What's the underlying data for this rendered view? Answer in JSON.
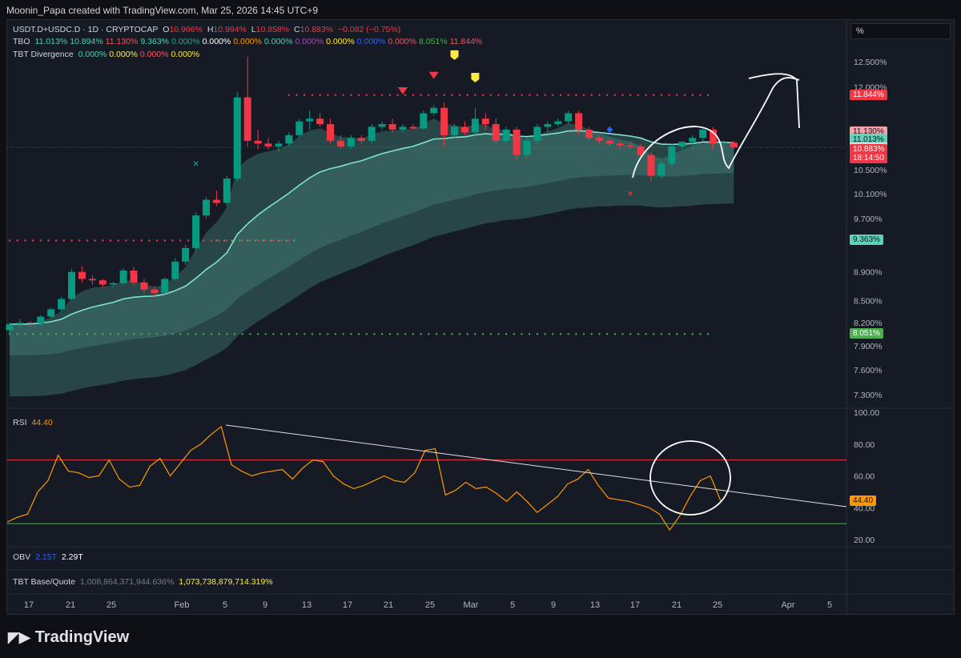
{
  "creator": "Moonin_Papa created with TradingView.com, Mar 25, 2026 14:45 UTC+9",
  "search_value": "%",
  "symbol_line": {
    "symbol": "USDT.D+USDC.D · 1D · CRYPTOCAP",
    "open_label": "O",
    "open": "10.966%",
    "high_label": "H",
    "high": "10.994%",
    "low_label": "L",
    "low": "10.858%",
    "close_label": "C",
    "close": "10.883%",
    "change": "−0.082 (−0.75%)"
  },
  "tbo_line": {
    "label": "TBO",
    "values": [
      {
        "text": "11.013%",
        "color": "#4dd0b0"
      },
      {
        "text": "10.894%",
        "color": "#4dd0b0"
      },
      {
        "text": "11.130%",
        "color": "#f7525f"
      },
      {
        "text": "9.363%",
        "color": "#4dd0b0"
      },
      {
        "text": "0.000%",
        "color": "#26a69a"
      },
      {
        "text": "0.000%",
        "color": "#ffffff"
      },
      {
        "text": "0.000%",
        "color": "#ff9800"
      },
      {
        "text": "0.000%",
        "color": "#4dd0b0"
      },
      {
        "text": "0.000%",
        "color": "#ab47bc"
      },
      {
        "text": "0.000%",
        "color": "#ffeb3b"
      },
      {
        "text": "0.000%",
        "color": "#2962ff"
      },
      {
        "text": "0.000%",
        "color": "#f7525f"
      },
      {
        "text": "8.051%",
        "color": "#4caf50"
      },
      {
        "text": "11.844%",
        "color": "#f7525f"
      }
    ]
  },
  "div_line": {
    "label": "TBT Divergence",
    "values": [
      {
        "text": "0.000%",
        "color": "#4dd0b0"
      },
      {
        "text": "0.000%",
        "color": "#ffeb3b"
      },
      {
        "text": "0.000%",
        "color": "#f7525f"
      },
      {
        "text": "0.000%",
        "color": "#ffeb3b"
      }
    ]
  },
  "rsi_legend": {
    "label": "RSI",
    "value": "44.40"
  },
  "obv_legend": {
    "label": "OBV",
    "v1": "2.15T",
    "v2": "2.29T"
  },
  "base_legend": {
    "label": "TBT Base/Quote",
    "v1": "1,008,864,371,944.636%",
    "v2": "1,073,738,879,714.319%"
  },
  "price_axis": [
    "12.500%",
    "12.000%",
    "10.500%",
    "10.100%",
    "9.700%",
    "8.900%",
    "8.500%",
    "8.200%",
    "7.900%",
    "7.600%",
    "7.300%"
  ],
  "price_tags": [
    {
      "text": "11.844%",
      "bg": "#f23645"
    },
    {
      "text": "11.130%",
      "bg": "#f7a1a8",
      "fg": "#131722"
    },
    {
      "text": "11.013%",
      "bg": "#5fd3b5",
      "fg": "#131722"
    },
    {
      "text": "10.894%",
      "bg": "#b2ebe0",
      "fg": "#131722"
    },
    {
      "text": "10.883%",
      "bg": "#f23645"
    },
    {
      "text": "18:14:50",
      "bg": "#f23645"
    },
    {
      "text": "9.363%",
      "bg": "#5fd3b5",
      "fg": "#131722"
    },
    {
      "text": "8.051%",
      "bg": "#4caf50"
    }
  ],
  "rsi_axis": [
    "100.00",
    "80.00",
    "60.00",
    "40.00",
    "20.00"
  ],
  "rsi_tag": "44.40",
  "time_axis": [
    "17",
    "21",
    "25",
    "Feb",
    "5",
    "9",
    "13",
    "17",
    "21",
    "25",
    "Mar",
    "5",
    "9",
    "13",
    "17",
    "21",
    "25",
    "Apr",
    "5"
  ],
  "brand": "TradingView",
  "colors": {
    "up": "#089981",
    "down": "#f23645",
    "rsi": "#ff9800",
    "tbo_line": "#7fe3cf",
    "accent": "#2962ff"
  },
  "chart_data": [
    {
      "type": "candlestick",
      "title": "USDT.D+USDC.D · 1D · CRYPTOCAP",
      "y_unit": "%",
      "x": [
        "Jan 14",
        "Jan 15",
        "Jan 16",
        "Jan 17",
        "Jan 18",
        "Jan 19",
        "Jan 20",
        "Jan 21",
        "Jan 22",
        "Jan 23",
        "Jan 24",
        "Jan 25",
        "Jan 26",
        "Jan 27",
        "Jan 28",
        "Jan 29",
        "Jan 30",
        "Jan 31",
        "Feb 1",
        "Feb 2",
        "Feb 3",
        "Feb 4",
        "Feb 5",
        "Feb 6",
        "Feb 7",
        "Feb 8",
        "Feb 9",
        "Feb 10",
        "Feb 11",
        "Feb 12",
        "Feb 13",
        "Feb 14",
        "Feb 15",
        "Feb 16",
        "Feb 17",
        "Feb 18",
        "Feb 19",
        "Feb 20",
        "Feb 21",
        "Feb 22",
        "Feb 23",
        "Feb 24",
        "Feb 25",
        "Feb 26",
        "Feb 27",
        "Feb 28",
        "Mar 1",
        "Mar 2",
        "Mar 3",
        "Mar 4",
        "Mar 5",
        "Mar 6",
        "Mar 7",
        "Mar 8",
        "Mar 9",
        "Mar 10",
        "Mar 11",
        "Mar 12",
        "Mar 13",
        "Mar 14",
        "Mar 15",
        "Mar 16",
        "Mar 17",
        "Mar 18",
        "Mar 19",
        "Mar 20",
        "Mar 21",
        "Mar 22",
        "Mar 23",
        "Mar 24",
        "Mar 25"
      ],
      "ohlc": [
        [
          8.1,
          8.2,
          8.05,
          8.18
        ],
        [
          8.18,
          8.25,
          8.12,
          8.2
        ],
        [
          8.2,
          8.22,
          8.15,
          8.19
        ],
        [
          8.19,
          8.3,
          8.15,
          8.28
        ],
        [
          8.28,
          8.4,
          8.25,
          8.38
        ],
        [
          8.38,
          8.55,
          8.35,
          8.52
        ],
        [
          8.52,
          8.95,
          8.5,
          8.9
        ],
        [
          8.9,
          8.98,
          8.75,
          8.8
        ],
        [
          8.8,
          8.85,
          8.72,
          8.78
        ],
        [
          8.78,
          8.8,
          8.68,
          8.72
        ],
        [
          8.72,
          8.76,
          8.68,
          8.74
        ],
        [
          8.74,
          8.95,
          8.72,
          8.92
        ],
        [
          8.92,
          8.97,
          8.7,
          8.75
        ],
        [
          8.75,
          8.8,
          8.6,
          8.65
        ],
        [
          8.65,
          8.7,
          8.55,
          8.6
        ],
        [
          8.6,
          8.82,
          8.58,
          8.8
        ],
        [
          8.8,
          9.1,
          8.78,
          9.05
        ],
        [
          9.05,
          9.3,
          9.0,
          9.25
        ],
        [
          9.25,
          9.8,
          9.2,
          9.75
        ],
        [
          9.75,
          10.05,
          9.7,
          10.0
        ],
        [
          10.0,
          10.15,
          9.9,
          9.95
        ],
        [
          9.95,
          10.4,
          9.9,
          10.35
        ],
        [
          10.35,
          11.9,
          10.3,
          11.8
        ],
        [
          11.8,
          12.6,
          10.9,
          11.0
        ],
        [
          11.0,
          11.2,
          10.85,
          10.95
        ],
        [
          10.95,
          11.05,
          10.85,
          10.9
        ],
        [
          10.9,
          11.0,
          10.8,
          10.95
        ],
        [
          10.95,
          11.15,
          10.9,
          11.1
        ],
        [
          11.1,
          11.4,
          11.05,
          11.35
        ],
        [
          11.35,
          11.55,
          11.2,
          11.4
        ],
        [
          11.4,
          11.5,
          11.25,
          11.3
        ],
        [
          11.3,
          11.4,
          10.95,
          11.0
        ],
        [
          11.0,
          11.1,
          10.85,
          10.9
        ],
        [
          10.9,
          11.1,
          10.85,
          11.05
        ],
        [
          11.05,
          11.1,
          10.95,
          11.0
        ],
        [
          11.0,
          11.3,
          10.95,
          11.25
        ],
        [
          11.25,
          11.35,
          11.2,
          11.3
        ],
        [
          11.3,
          11.4,
          11.15,
          11.2
        ],
        [
          11.2,
          11.3,
          11.15,
          11.25
        ],
        [
          11.25,
          11.3,
          11.2,
          11.22
        ],
        [
          11.22,
          11.55,
          11.2,
          11.5
        ],
        [
          11.5,
          11.65,
          11.45,
          11.6
        ],
        [
          11.6,
          11.7,
          10.9,
          11.1
        ],
        [
          11.1,
          11.3,
          11.05,
          11.25
        ],
        [
          11.25,
          11.35,
          11.1,
          11.15
        ],
        [
          11.15,
          11.6,
          11.1,
          11.4
        ],
        [
          11.4,
          11.5,
          11.2,
          11.3
        ],
        [
          11.3,
          11.4,
          10.95,
          11.0
        ],
        [
          11.0,
          11.25,
          10.95,
          11.2
        ],
        [
          11.2,
          11.25,
          10.65,
          10.75
        ],
        [
          10.75,
          11.05,
          10.7,
          11.0
        ],
        [
          11.0,
          11.3,
          10.95,
          11.25
        ],
        [
          11.25,
          11.35,
          11.15,
          11.3
        ],
        [
          11.3,
          11.4,
          11.25,
          11.35
        ],
        [
          11.35,
          11.55,
          11.3,
          11.5
        ],
        [
          11.5,
          11.55,
          11.1,
          11.2
        ],
        [
          11.2,
          11.25,
          11.0,
          11.05
        ],
        [
          11.05,
          11.1,
          10.95,
          11.0
        ],
        [
          11.0,
          11.05,
          10.9,
          10.95
        ],
        [
          10.95,
          11.0,
          10.85,
          10.92
        ],
        [
          10.92,
          10.98,
          10.85,
          10.9
        ],
        [
          10.9,
          10.95,
          10.7,
          10.75
        ],
        [
          10.75,
          10.8,
          10.3,
          10.4
        ],
        [
          10.4,
          10.65,
          10.35,
          10.6
        ],
        [
          10.6,
          10.95,
          10.55,
          10.9
        ],
        [
          10.9,
          11.0,
          10.85,
          10.98
        ],
        [
          10.98,
          11.1,
          10.9,
          11.05
        ],
        [
          11.05,
          11.25,
          11.0,
          11.2
        ],
        [
          11.2,
          11.25,
          10.85,
          10.95
        ],
        [
          10.95,
          11.0,
          10.85,
          10.97
        ],
        [
          10.966,
          10.994,
          10.858,
          10.883
        ]
      ]
    },
    {
      "type": "line",
      "title": "RSI",
      "ylim": [
        20,
        100
      ],
      "series": [
        {
          "name": "RSI",
          "values": [
            31,
            34,
            36,
            50,
            57,
            73,
            63,
            62,
            59,
            60,
            70,
            58,
            53,
            54,
            66,
            71,
            60,
            68,
            76,
            80,
            86,
            91,
            67,
            63,
            60,
            62,
            63,
            64,
            58,
            65,
            70,
            69,
            60,
            55,
            52,
            54,
            57,
            60,
            57,
            56,
            62,
            76,
            77,
            48,
            51,
            56,
            52,
            53,
            49,
            44,
            50,
            44,
            37,
            42,
            47,
            55,
            58,
            64,
            54,
            46,
            45,
            44,
            42,
            40,
            36,
            26,
            35,
            47,
            57,
            60,
            44.4
          ]
        }
      ]
    }
  ]
}
